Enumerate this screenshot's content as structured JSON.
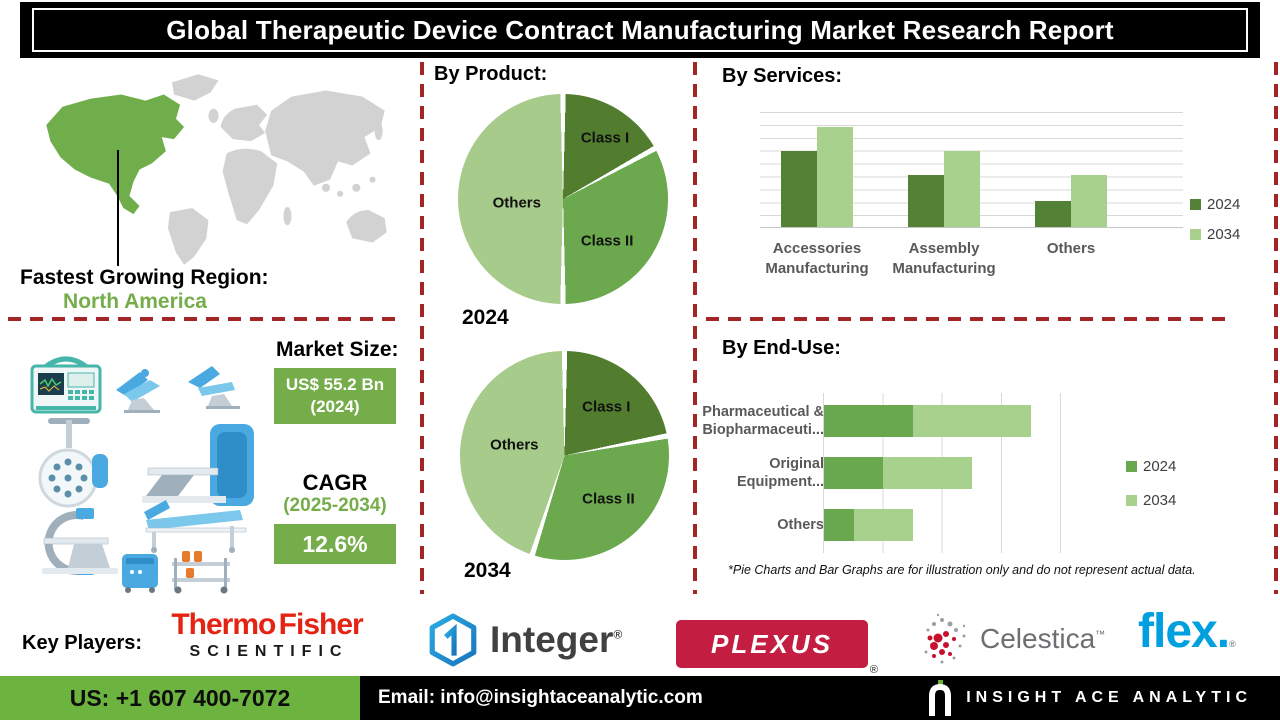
{
  "title": "Global Therapeutic Device Contract Manufacturing Market Research Report",
  "map": {
    "region_heading": "Fastest Growing Region:",
    "region_value": "North America"
  },
  "market": {
    "heading": "Market Size:",
    "size_value": "US$ 55.2 Bn",
    "size_year": "(2024)",
    "cagr_label": "CAGR",
    "cagr_period": "(2025-2034)",
    "cagr_value": "12.6%"
  },
  "sections": {
    "by_product": "By Product:",
    "by_services": "By Services:",
    "by_end_use": "By End-Use:"
  },
  "footnote": "*Pie Charts and Bar Graphs are for illustration only and do not represent actual data.",
  "key_players": {
    "heading": "Key Players:",
    "thermo_line1": "Thermo Fisher",
    "thermo_line2": "SCIENTIFIC",
    "integer_text": "Integer",
    "integer_mark": "®",
    "plexus_text": "PLEXUS",
    "plexus_mark": "®",
    "celestica_text": "Celestica",
    "celestica_mark": "™",
    "flex_text": "flex",
    "flex_dot": ".",
    "flex_mark": "®"
  },
  "footer": {
    "phone": "US: +1 607 400-7072",
    "email": "Email: info@insightaceanalytic.com",
    "brand": "INSIGHT ACE ANALYTIC"
  },
  "colors": {
    "accent_green": "#76ad4b",
    "map_green": "#6fae4a",
    "footer_green": "#6cb33f",
    "dashed_red": "#a32525",
    "thermo_red": "#e42313",
    "plexus_red": "#c41d42",
    "flex_blue": "#00a0df",
    "celestica_gray": "#6d6e71"
  },
  "chart_data": [
    {
      "id": "product_2024",
      "type": "pie",
      "section": "By Product:",
      "year_label": "2024",
      "labels": [
        "Class I",
        "Class II",
        "Others"
      ],
      "values": [
        17,
        33,
        50
      ],
      "colors": [
        "#527d2f",
        "#6ba84e",
        "#a7cb8b"
      ],
      "note": "illustrative shares"
    },
    {
      "id": "product_2034",
      "type": "pie",
      "section": "By Product:",
      "year_label": "2034",
      "labels": [
        "Class I",
        "Class II",
        "Others"
      ],
      "values": [
        22,
        33,
        45
      ],
      "colors": [
        "#527d2f",
        "#6ba84e",
        "#a7cb8b"
      ],
      "note": "illustrative shares"
    },
    {
      "id": "services",
      "type": "bar",
      "section": "By Services:",
      "categories": [
        "Accessories\nManufacturing",
        "Assembly\nManufacturing",
        "Others"
      ],
      "series": [
        {
          "name": "2024",
          "color": "#538135",
          "values": [
            5.9,
            4.0,
            2.0
          ]
        },
        {
          "name": "2034",
          "color": "#a9d18e",
          "values": [
            7.8,
            5.9,
            4.0
          ]
        }
      ],
      "ymax": 9,
      "grid": true,
      "legend_position": "right",
      "note": "illustrative relative units, no value axis labels shown"
    },
    {
      "id": "end_use",
      "type": "bar",
      "orientation": "horizontal",
      "stacked": true,
      "section": "By End-Use:",
      "categories": [
        "Pharmaceutical &\nBiopharmaceuti...",
        "Original\nEquipment...",
        "Others"
      ],
      "series": [
        {
          "name": "2024",
          "color": "#6aa84f",
          "values": [
            1.5,
            1.0,
            0.5
          ]
        },
        {
          "name": "2034",
          "color": "#a9d18e",
          "values": [
            2.0,
            1.5,
            1.0
          ]
        }
      ],
      "xmax": 4,
      "grid": true,
      "legend_position": "right",
      "note": "illustrative relative units, no value axis labels shown"
    }
  ]
}
